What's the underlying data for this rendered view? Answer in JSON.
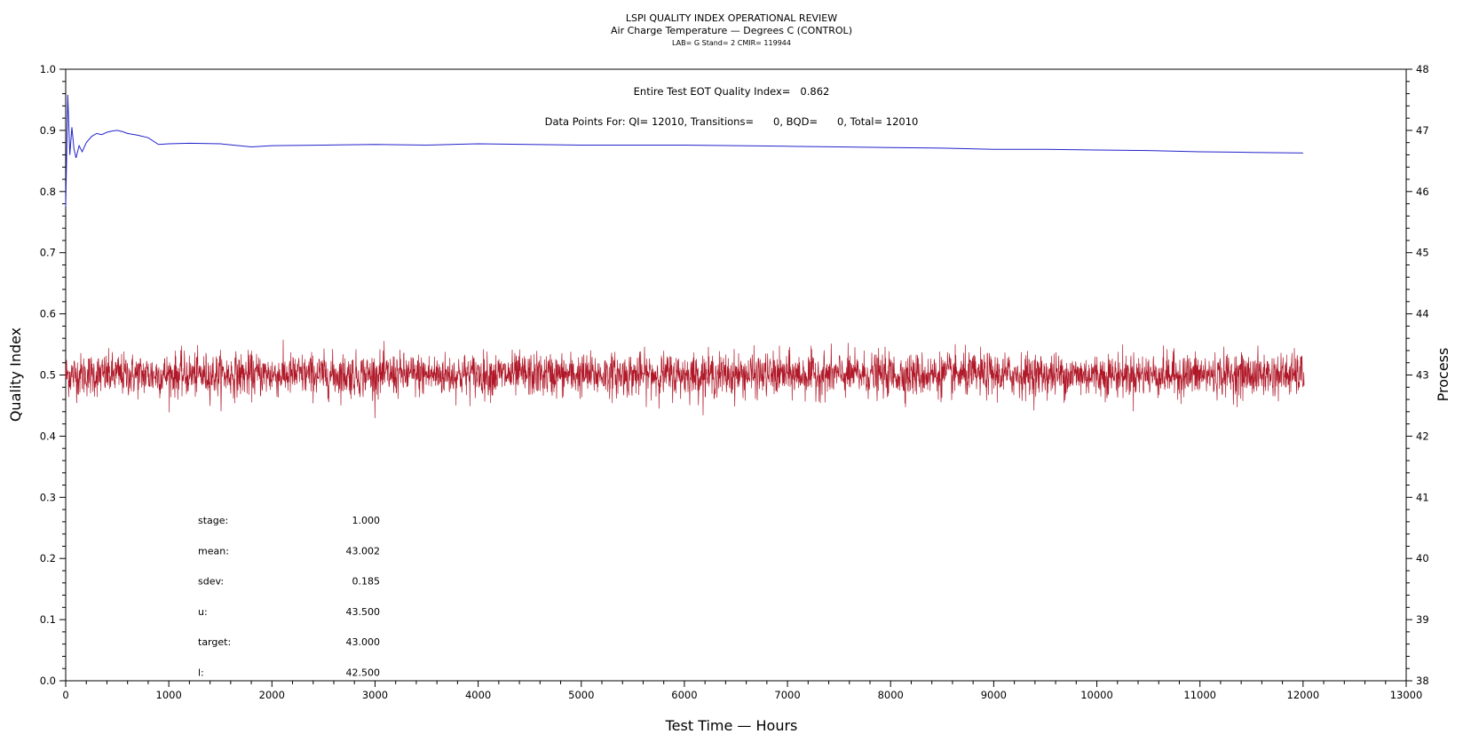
{
  "chart_data": {
    "type": "line",
    "title": "LSPI QUALITY INDEX OPERATIONAL REVIEW",
    "subtitle": "Air Charge Temperature — Degrees C (CONTROL)",
    "subtitle2": "LAB= G Stand= 2 CMIR= 119944",
    "xlabel": "Test Time — Hours",
    "ylabel_left": "Quality Index",
    "ylabel_right": "Process",
    "xlim": [
      0,
      13000
    ],
    "ylim_left": [
      0.0,
      1.0
    ],
    "ylim_right": [
      38,
      48
    ],
    "x_ticks": [
      "0",
      "1000",
      "2000",
      "3000",
      "4000",
      "5000",
      "6000",
      "7000",
      "8000",
      "9000",
      "10000",
      "11000",
      "12000",
      "13000"
    ],
    "y_left_ticks": [
      "0.0",
      "0.1",
      "0.2",
      "0.3",
      "0.4",
      "0.5",
      "0.6",
      "0.7",
      "0.8",
      "0.9",
      "1.0"
    ],
    "y_right_ticks": [
      "38",
      "39",
      "40",
      "41",
      "42",
      "43",
      "44",
      "45",
      "46",
      "47",
      "48"
    ],
    "grid": false,
    "annotations": {
      "quality_index_line": "Entire Test EOT Quality Index=   0.862",
      "data_points_line": "Data Points For: QI= 12010, Transitions=      0, BQD=      0, Total= 12010"
    },
    "stats": [
      {
        "label": "stage:",
        "value": "1.000"
      },
      {
        "label": "mean:",
        "value": "43.002"
      },
      {
        "label": "sdev:",
        "value": "0.185"
      },
      {
        "label": "u:",
        "value": "43.500"
      },
      {
        "label": "target:",
        "value": "43.000"
      },
      {
        "label": "l:",
        "value": "42.500"
      }
    ],
    "series": [
      {
        "axis": "left",
        "color": "#2222cc",
        "x": [
          0,
          20,
          40,
          60,
          80,
          100,
          130,
          160,
          200,
          250,
          300,
          350,
          400,
          450,
          500,
          550,
          600,
          700,
          800,
          900,
          1000,
          1200,
          1500,
          1800,
          2000,
          2500,
          3000,
          3500,
          4000,
          4500,
          5000,
          5500,
          6000,
          6500,
          7000,
          7500,
          8000,
          8500,
          9000,
          9500,
          10000,
          10500,
          11000,
          11500,
          12000
        ],
        "values": [
          0.775,
          0.958,
          0.86,
          0.905,
          0.87,
          0.855,
          0.875,
          0.865,
          0.88,
          0.89,
          0.895,
          0.893,
          0.897,
          0.899,
          0.9,
          0.898,
          0.895,
          0.892,
          0.888,
          0.877,
          0.878,
          0.879,
          0.878,
          0.873,
          0.875,
          0.876,
          0.877,
          0.876,
          0.878,
          0.877,
          0.876,
          0.876,
          0.876,
          0.875,
          0.874,
          0.873,
          0.872,
          0.871,
          0.869,
          0.869,
          0.868,
          0.867,
          0.865,
          0.864,
          0.863
        ]
      },
      {
        "axis": "right",
        "color": "#b01828",
        "x_range": [
          0,
          12010
        ],
        "mean": 43.002,
        "sdev": 0.185,
        "min": 42.25,
        "max": 43.7,
        "points": 12010
      }
    ]
  }
}
